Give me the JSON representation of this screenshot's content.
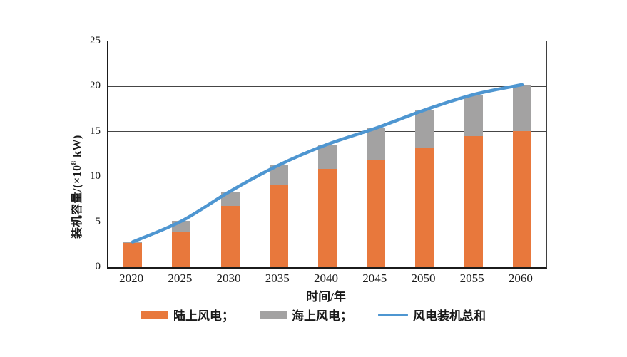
{
  "chart_data": {
    "type": "bar",
    "subtype": "stacked-bar-with-line-overlay",
    "title": "",
    "categories": [
      "2020",
      "2025",
      "2030",
      "2035",
      "2040",
      "2045",
      "2050",
      "2055",
      "2060"
    ],
    "series": [
      {
        "name": "陆上风电",
        "type": "bar",
        "color": "#E8783C",
        "values": [
          2.7,
          3.9,
          6.8,
          9.1,
          10.9,
          11.9,
          13.2,
          14.5,
          15.1
        ]
      },
      {
        "name": "海上风电",
        "type": "bar",
        "color": "#A3A2A2",
        "values": [
          0.1,
          1.2,
          1.6,
          2.2,
          2.7,
          3.5,
          4.2,
          4.6,
          5.1
        ]
      },
      {
        "name": "风电装机总和",
        "type": "line",
        "color": "#4E96D1",
        "values": [
          2.8,
          5.1,
          8.4,
          11.3,
          13.6,
          15.4,
          17.4,
          19.1,
          20.2
        ]
      }
    ],
    "xlabel": "时间/年",
    "ylabel": "装机容量/(×10⁸ kW)",
    "ylabel_parts": {
      "prefix": "装机容量/(×10",
      "sup": "8",
      "suffix": " kW)"
    },
    "ylim": [
      0,
      25
    ],
    "yticks": [
      0,
      5,
      10,
      15,
      20,
      25
    ],
    "grid": true,
    "legend_position": "bottom",
    "colors": {
      "grid": "#454545",
      "axis": "#1b1b1b",
      "text": "#1a1a1a",
      "background": "#ffffff"
    }
  },
  "legend": {
    "items": [
      {
        "label": "陆上风电；",
        "swatch": "bar",
        "color": "#E8783C"
      },
      {
        "label": "海上风电；",
        "swatch": "bar",
        "color": "#A3A2A2"
      },
      {
        "label": "风电装机总和",
        "swatch": "line",
        "color": "#4E96D1"
      }
    ]
  }
}
